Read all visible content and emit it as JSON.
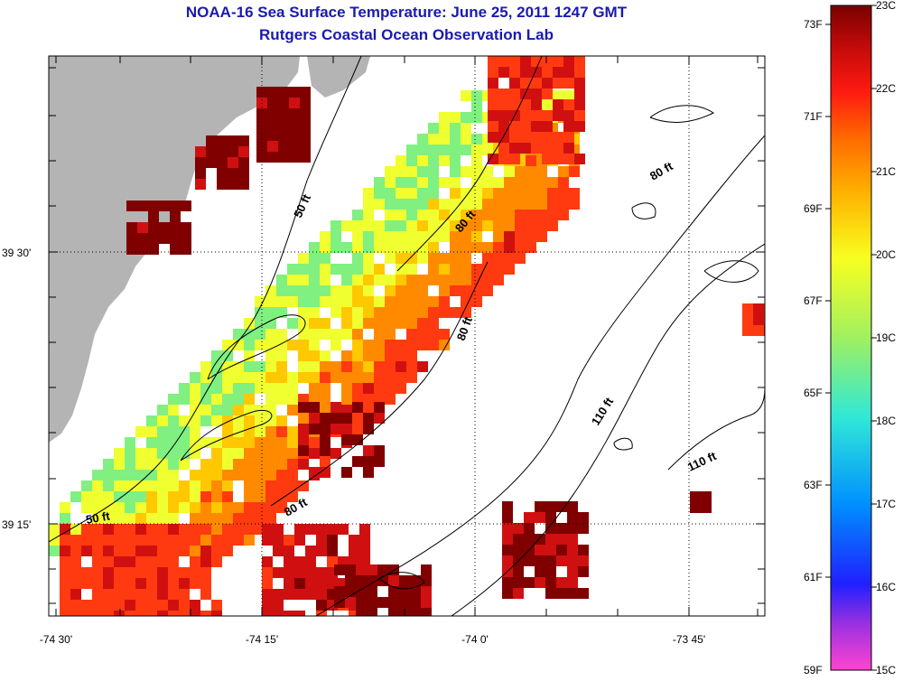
{
  "title": {
    "line1": "NOAA-16 Sea Surface Temperature:  June 25, 2011 1247 GMT",
    "line2": "Rutgers Coastal Ocean Observation Lab"
  },
  "colors": {
    "title": "#1a1ab0",
    "land": "#b4b4b4",
    "no_data": "#ffffff",
    "sst_palette": [
      "#ff44d0",
      "#7a2fe0",
      "#1a1aff",
      "#00a8ff",
      "#30e0d0",
      "#80f080",
      "#f0ff30",
      "#ffc800",
      "#ff8a00",
      "#ff3a10",
      "#d01010",
      "#800000"
    ]
  },
  "map": {
    "lat_ticks": [
      "39 30'",
      "39 15'"
    ],
    "lon_ticks": [
      "-74 30'",
      "-74 15'",
      "-74 0'",
      "-73 45'"
    ],
    "depth_labels": [
      "50 ft",
      "50 ft",
      "80 ft",
      "80 ft",
      "80 ft",
      "80 ft",
      "110 ft",
      "110 ft"
    ]
  },
  "colorbar": {
    "fahrenheit_labels": [
      "73F",
      "71F",
      "69F",
      "67F",
      "65F",
      "63F",
      "61F",
      "59F"
    ],
    "celsius_labels": [
      "23C",
      "22C",
      "21C",
      "20C",
      "19C",
      "18C",
      "17C",
      "16C",
      "15C"
    ],
    "range_c": [
      15,
      23
    ],
    "range_f": [
      59,
      73.4
    ]
  }
}
